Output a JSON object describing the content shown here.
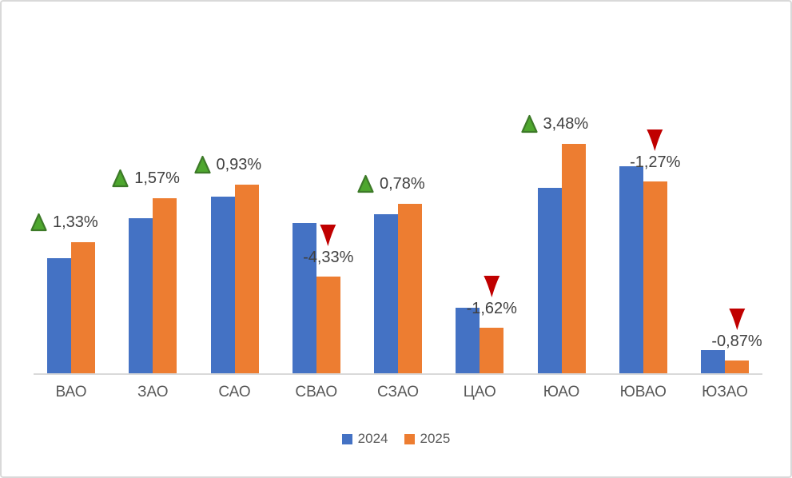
{
  "chart_data": {
    "type": "bar",
    "title": "",
    "xlabel": "",
    "ylabel": "",
    "value_axis_visible": false,
    "units_note": "no value axis shown; values are relative bar heights",
    "categories": [
      "ВАО",
      "ЗАО",
      "САО",
      "СВАО",
      "СЗАО",
      "ЦАО",
      "ЮАО",
      "ЮВАО",
      "ЮЗАО"
    ],
    "series": [
      {
        "name": "2024",
        "color": "#4472C4",
        "values": [
          144,
          194,
          221,
          188,
          199,
          82,
          232,
          259,
          29
        ]
      },
      {
        "name": "2025",
        "color": "#ED7D31",
        "values": [
          164,
          219,
          236,
          121,
          212,
          57,
          287,
          240,
          16
        ]
      }
    ],
    "annotations": [
      {
        "category": "ВАО",
        "label": "1,33%",
        "direction": "up"
      },
      {
        "category": "ЗАО",
        "label": "1,57%",
        "direction": "up"
      },
      {
        "category": "САО",
        "label": "0,93%",
        "direction": "up"
      },
      {
        "category": "СВАО",
        "label": "-4,33%",
        "direction": "down"
      },
      {
        "category": "СЗАО",
        "label": "0,78%",
        "direction": "up"
      },
      {
        "category": "ЦАО",
        "label": "-1,62%",
        "direction": "down"
      },
      {
        "category": "ЮАО",
        "label": "3,48%",
        "direction": "up"
      },
      {
        "category": "ЮВАО",
        "label": "-1,27%",
        "direction": "down"
      },
      {
        "category": "ЮЗАО",
        "label": "-0,87%",
        "direction": "down"
      }
    ],
    "legend": {
      "position": "bottom"
    },
    "colors": {
      "up_triangle_fill": "#4EA72E",
      "up_triangle_border": "#3D7A28",
      "down_triangle_fill": "#C00000",
      "axis_line": "#D9D9D9",
      "category_text": "#595959",
      "annotation_text": "#404040",
      "frame_border": "#D9D9D9",
      "background": "#FFFFFF"
    }
  }
}
